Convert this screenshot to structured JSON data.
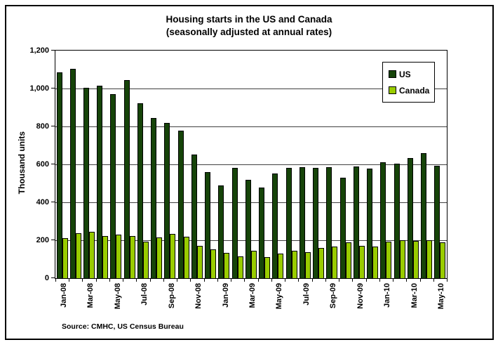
{
  "window": {
    "background": "#ffffff",
    "border_color": "#000000"
  },
  "chart_data": {
    "type": "bar",
    "title": "Housing starts in the US and Canada",
    "subtitle": "(seasonally adjusted at annual rates)",
    "ylabel": "Thousand units",
    "xlabel": "",
    "source": "Source: CMHC, US Census Bureau",
    "ylim": [
      0,
      1200
    ],
    "ytick_interval": 200,
    "ytick_labels": [
      "0",
      "200",
      "400",
      "600",
      "800",
      "1,000",
      "1,200"
    ],
    "grid": true,
    "gridline_color": "#404040",
    "legend_position": "top-right",
    "categories": [
      "Jan-08",
      "Feb-08",
      "Mar-08",
      "Apr-08",
      "May-08",
      "Jun-08",
      "Jul-08",
      "Aug-08",
      "Sep-08",
      "Oct-08",
      "Nov-08",
      "Dec-08",
      "Jan-09",
      "Feb-09",
      "Mar-09",
      "Apr-09",
      "May-09",
      "Jun-09",
      "Jul-09",
      "Aug-09",
      "Sep-09",
      "Oct-09",
      "Nov-09",
      "Dec-09",
      "Jan-10",
      "Feb-10",
      "Mar-10",
      "Apr-10",
      "May-10"
    ],
    "xtick_labels_shown": [
      "Jan-08",
      "Mar-08",
      "May-08",
      "Jul-08",
      "Sep-08",
      "Nov-08",
      "Jan-09",
      "Mar-09",
      "May-09",
      "Jul-09",
      "Sep-09",
      "Nov-09",
      "Jan-10",
      "Mar-10",
      "May-10"
    ],
    "series": [
      {
        "name": "US",
        "color": "#164409",
        "values": [
          1085,
          1103,
          1005,
          1013,
          971,
          1046,
          923,
          846,
          818,
          778,
          652,
          560,
          488,
          580,
          520,
          477,
          550,
          583,
          585,
          582,
          584,
          530,
          589,
          577,
          611,
          605,
          634,
          659,
          592
        ]
      },
      {
        "name": "Canada",
        "color": "#99cc00",
        "values": [
          210,
          237,
          245,
          224,
          228,
          224,
          192,
          215,
          232,
          218,
          171,
          150,
          133,
          115,
          143,
          110,
          128,
          146,
          137,
          160,
          165,
          190,
          172,
          167,
          193,
          200,
          196,
          200,
          189
        ]
      }
    ]
  }
}
